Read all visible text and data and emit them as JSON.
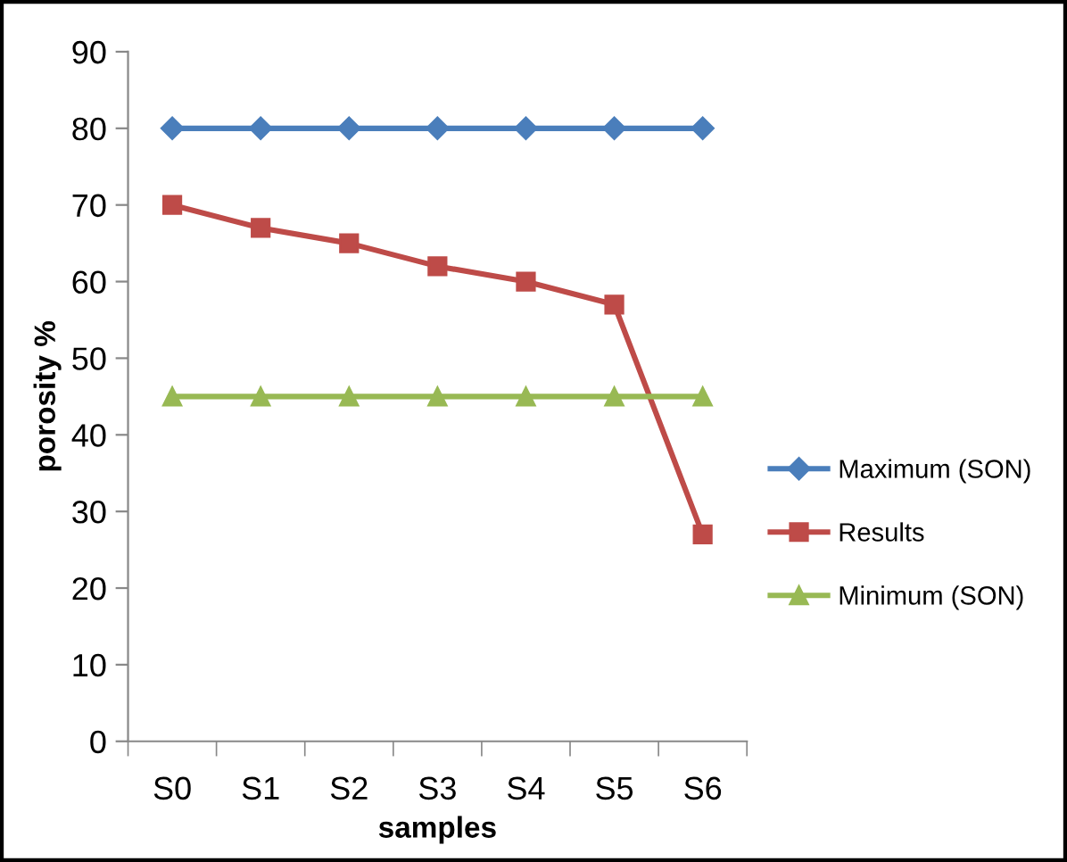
{
  "chart_data": {
    "type": "line",
    "xlabel": "samples",
    "ylabel": "porosity %",
    "categories": [
      "S0",
      "S1",
      "S2",
      "S3",
      "S4",
      "S5",
      "S6"
    ],
    "series": [
      {
        "name": "Maximum (SON)",
        "color": "#4a7ebb",
        "marker": "diamond",
        "values": [
          80,
          80,
          80,
          80,
          80,
          80,
          80
        ]
      },
      {
        "name": "Results",
        "color": "#be4b48",
        "marker": "square",
        "values": [
          70,
          67,
          65,
          62,
          60,
          57,
          27
        ]
      },
      {
        "name": "Minimum (SON)",
        "color": "#98b954",
        "marker": "triangle",
        "values": [
          45,
          45,
          45,
          45,
          45,
          45,
          45
        ]
      }
    ],
    "ylim": [
      0,
      90
    ],
    "yticks": [
      0,
      10,
      20,
      30,
      40,
      50,
      60,
      70,
      80,
      90
    ],
    "grid": false,
    "legend": "right",
    "line_style": "solid"
  }
}
